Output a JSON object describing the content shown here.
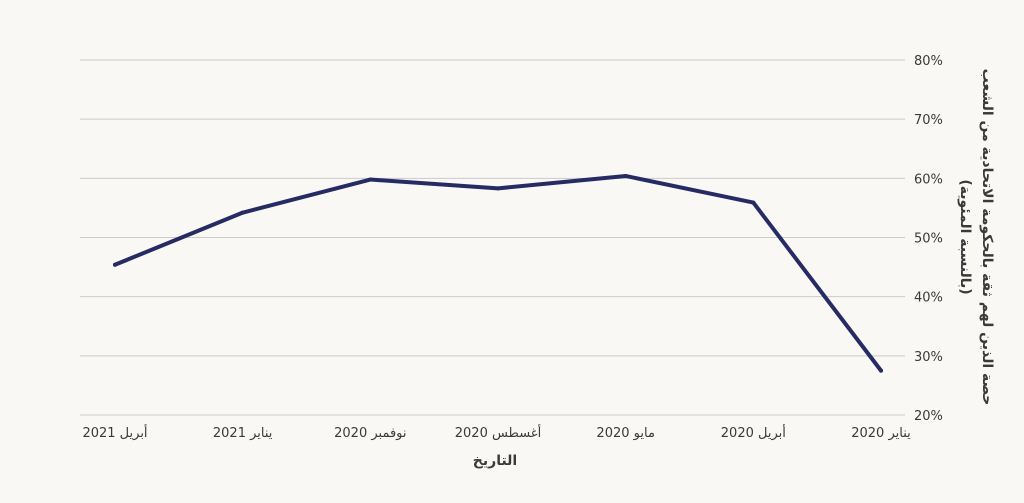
{
  "chart_data": {
    "type": "line",
    "title": "",
    "xlabel": "التاريخ",
    "ylabel_line1": "حصة الذين لهم ثقة بالحكومة الاتحادية من الشعب",
    "ylabel_line2": "(بالنسبة المئوية)",
    "x_direction": "right-to-left",
    "y_axis_side": "right",
    "grid": true,
    "ylim": [
      20,
      80
    ],
    "y_ticks": [
      20,
      30,
      40,
      50,
      60,
      70,
      80
    ],
    "y_tick_labels": [
      "20%",
      "30%",
      "40%",
      "50%",
      "60%",
      "70%",
      "80%"
    ],
    "categories": [
      "يناير 2020",
      "أبريل 2020",
      "مايو 2020",
      "أغسطس 2020",
      "نوفمبر 2020",
      "يناير 2021",
      "أبريل 2021"
    ],
    "series": [
      {
        "name": "",
        "color": "#262b63",
        "values": [
          27.5,
          55.9,
          60.4,
          58.3,
          59.8,
          54.2,
          45.4
        ]
      }
    ]
  }
}
